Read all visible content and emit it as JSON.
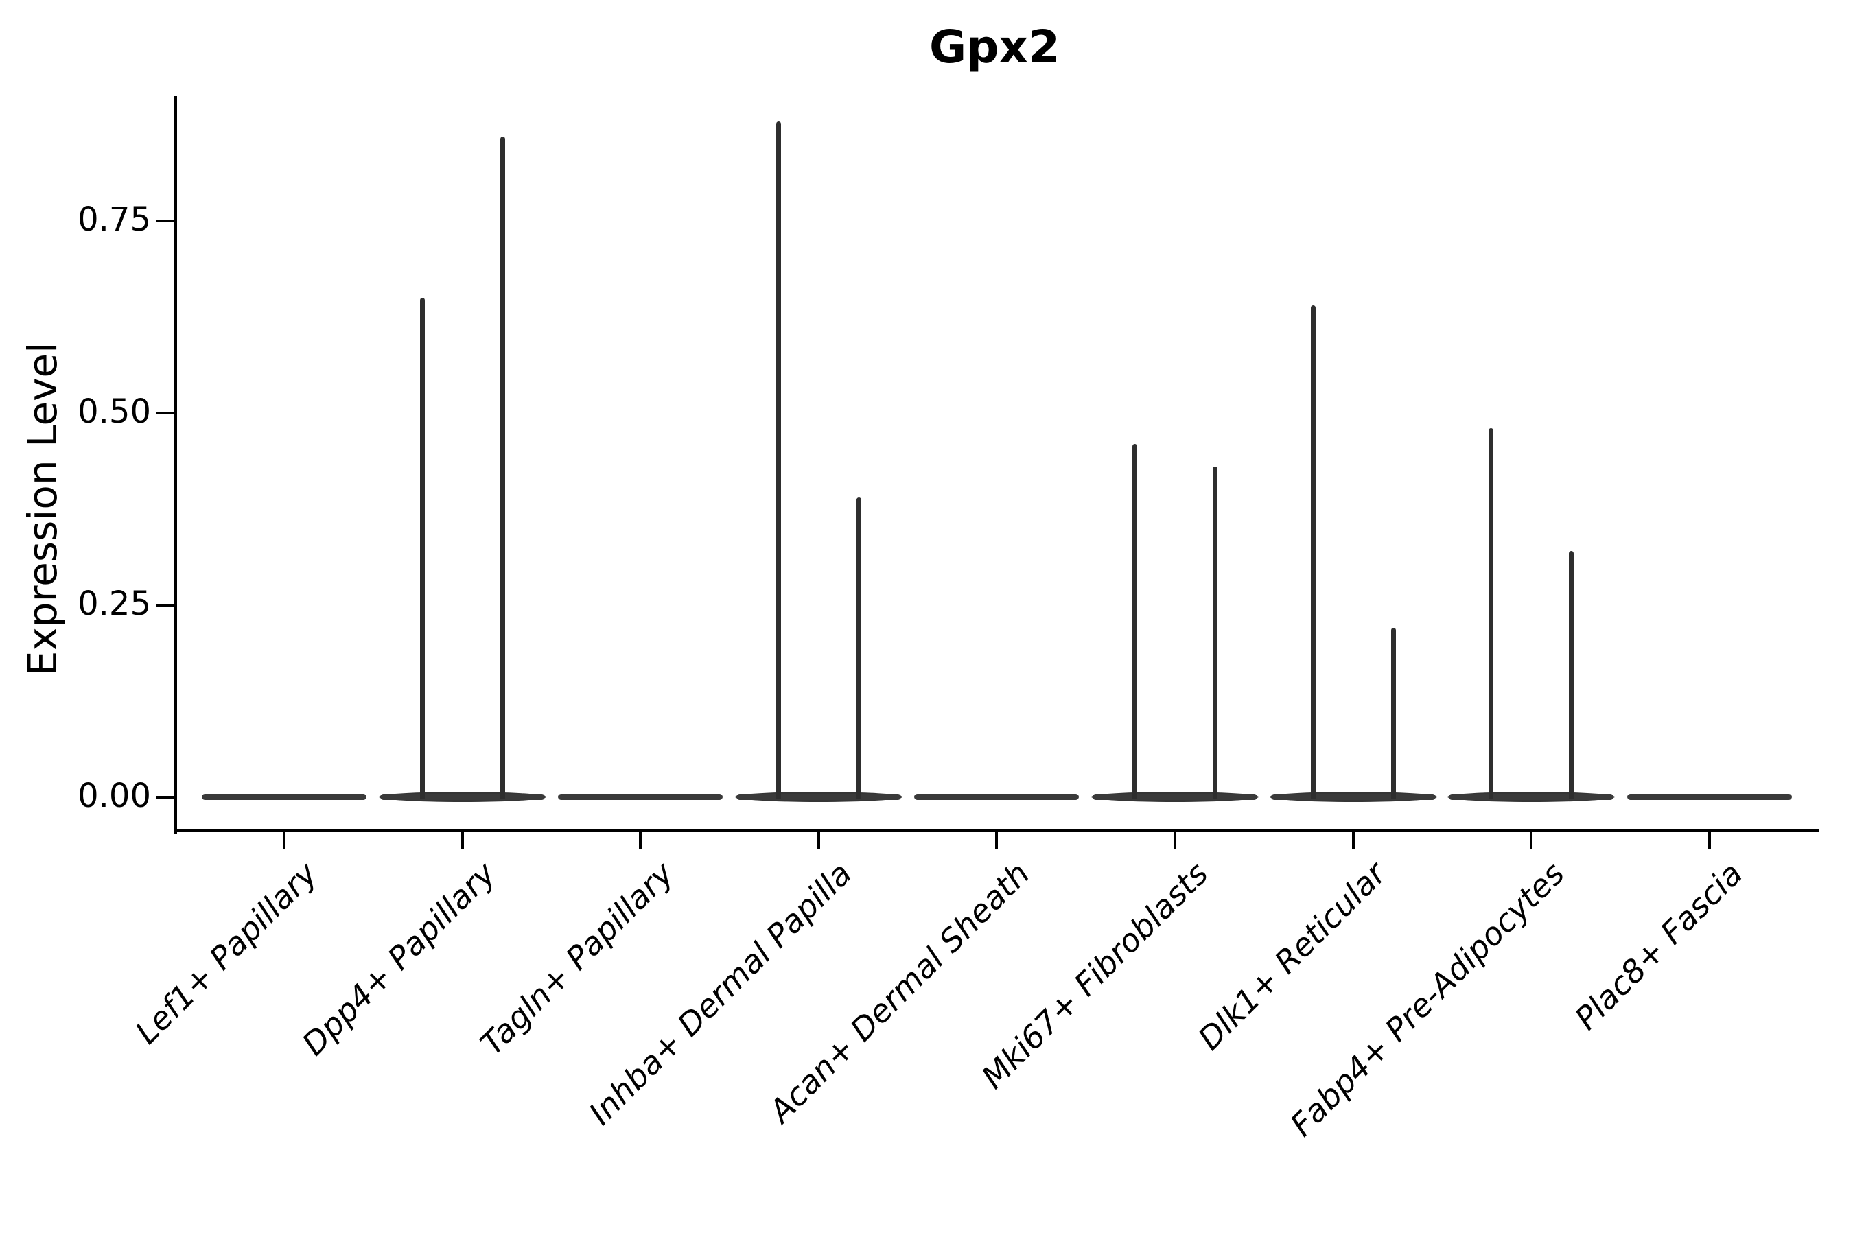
{
  "chart_data": {
    "type": "violin",
    "title": "Gpx2",
    "xlabel": "",
    "ylabel": "Expression Level",
    "ylim": [
      0,
      0.92
    ],
    "grid": false,
    "legend": false,
    "background_color": "#ffffff",
    "yticks": [
      {
        "value": 0.0,
        "label": "0.00"
      },
      {
        "value": 0.25,
        "label": "0.25"
      },
      {
        "value": 0.5,
        "label": "0.50"
      },
      {
        "value": 0.75,
        "label": "0.75"
      }
    ],
    "categories": [
      "Lef1+ Papillary",
      "Dpp4+ Papillary",
      "Tagln+ Papillary",
      "Inhba+ Dermal Papilla",
      "Acan+ Dermal Sheath",
      "Mki67+ Fibroblasts",
      "Dlk1+ Reticular",
      "Fabp4+ Pre-Adipocytes",
      "Plac8+ Fascia"
    ],
    "violins": [
      {
        "category": "Lef1+ Papillary",
        "baseline_at_zero": true,
        "spike_maxima": []
      },
      {
        "category": "Dpp4+ Papillary",
        "baseline_at_zero": true,
        "spike_maxima": [
          0.65,
          0.86
        ]
      },
      {
        "category": "Tagln+ Papillary",
        "baseline_at_zero": true,
        "spike_maxima": []
      },
      {
        "category": "Inhba+ Dermal Papilla",
        "baseline_at_zero": true,
        "spike_maxima": [
          0.88,
          0.39
        ]
      },
      {
        "category": "Acan+ Dermal Sheath",
        "baseline_at_zero": true,
        "spike_maxima": []
      },
      {
        "category": "Mki67+ Fibroblasts",
        "baseline_at_zero": true,
        "spike_maxima": [
          0.46,
          0.43
        ]
      },
      {
        "category": "Dlk1+ Reticular",
        "baseline_at_zero": true,
        "spike_maxima": [
          0.64,
          0.22
        ]
      },
      {
        "category": "Fabp4+ Pre-Adipocytes",
        "baseline_at_zero": true,
        "spike_maxima": [
          0.48,
          0.32
        ]
      },
      {
        "category": "Plac8+ Fascia",
        "baseline_at_zero": true,
        "spike_maxima": []
      }
    ],
    "colors": {
      "text": "#000000",
      "axis": "#000000",
      "violin_spike": "#2e2e2e",
      "violin_baseline": "#3a3a3a",
      "background": "#ffffff"
    }
  }
}
